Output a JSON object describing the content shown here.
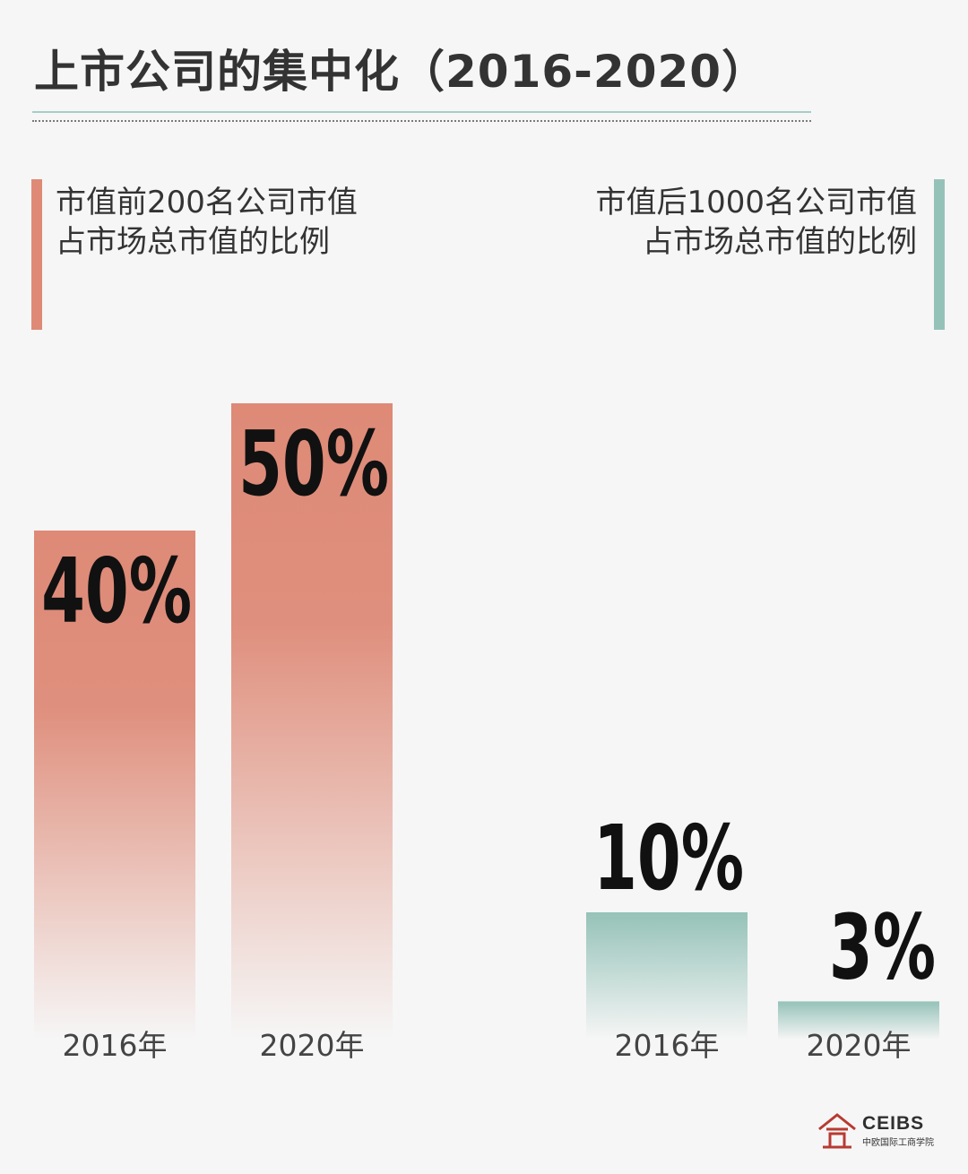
{
  "header": {
    "title": "上市公司的集中化（2016-2020）"
  },
  "colors": {
    "left_series": "#de8a77",
    "right_series": "#95c2b8",
    "title_rule": "#a7cdc6"
  },
  "chart_data": [
    {
      "type": "bar",
      "label_lines": [
        "市值前200名公司市值",
        "占市场总市值的比例"
      ],
      "categories": [
        "2016年",
        "2020年"
      ],
      "values": [
        40,
        50
      ],
      "value_labels": [
        "40%",
        "50%"
      ],
      "unit": "%"
    },
    {
      "type": "bar",
      "label_lines": [
        "市值后1000名公司市值",
        "占市场总市值的比例"
      ],
      "categories": [
        "2016年",
        "2020年"
      ],
      "values": [
        10,
        3
      ],
      "value_labels": [
        "10%",
        "3%"
      ],
      "unit": "%"
    }
  ],
  "logo": {
    "name": "CEIBS",
    "subtitle": "中欧国际工商学院"
  }
}
